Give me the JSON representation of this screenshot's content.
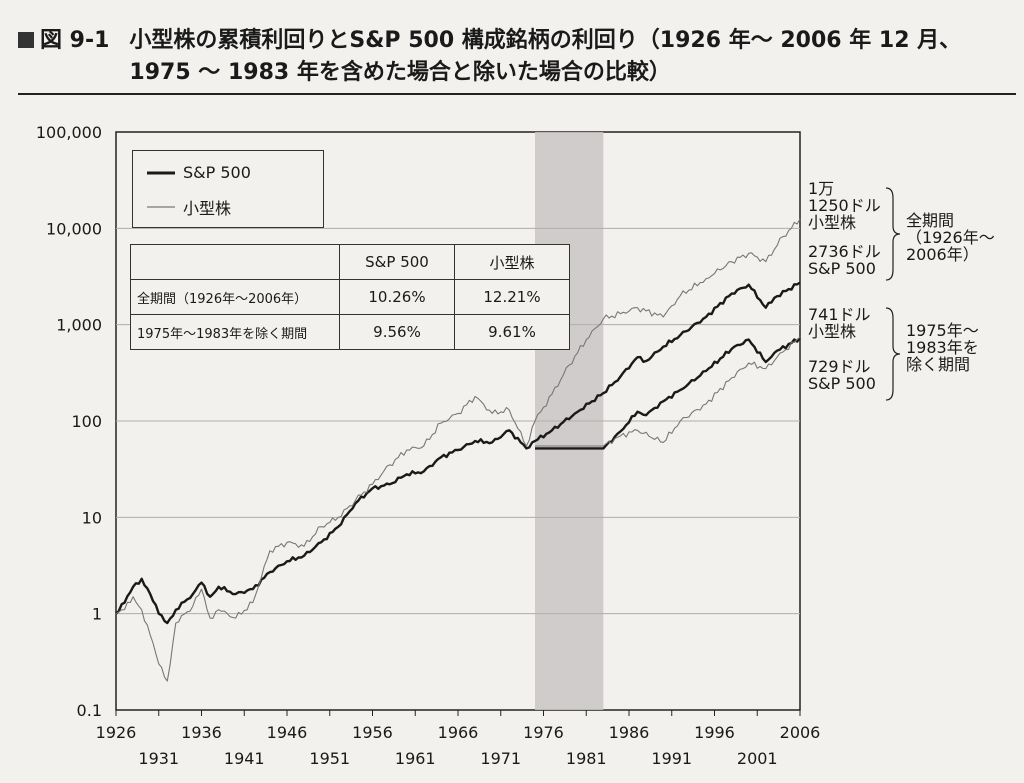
{
  "title": {
    "fig_label": "図 9-1",
    "text": "小型株の累積利回りとS&P 500 構成銘柄の利回り（1926 年～ 2006 年 12 月、1975 ～ 1983 年を含めた場合と除いた場合の比較）"
  },
  "legend": {
    "sp500": "S&P 500",
    "small": "小型株"
  },
  "table": {
    "headers": [
      "",
      "S&P 500",
      "小型株"
    ],
    "rows": [
      {
        "label": "全期間（1926年～2006年）",
        "sp500": "10.26%",
        "small": "12.21%"
      },
      {
        "label": "1975年～1983年を除く期間",
        "sp500": "9.56%",
        "small": "9.61%"
      }
    ]
  },
  "annotations": {
    "small_full": [
      "1万",
      "1250ドル",
      "小型株"
    ],
    "sp_full": [
      "2736ドル",
      "S&P 500"
    ],
    "full_label": [
      "全期間",
      "（1926年～",
      "2006年）"
    ],
    "small_excl": [
      "741ドル",
      "小型株"
    ],
    "sp_excl": [
      "729ドル",
      "S&P 500"
    ],
    "excl_label": [
      "1975年～",
      "1983年を",
      "除く期間"
    ]
  },
  "colors": {
    "sp500": "#1a1a1a",
    "small": "#777777",
    "shade": "#c9c6c4",
    "grid": "#b0aeab"
  },
  "chart_data": {
    "type": "line",
    "title": "小型株の累積利回りとS&P 500 構成銘柄の利回り",
    "xlabel": "",
    "ylabel": "",
    "yscale": "log",
    "ylim": [
      0.1,
      100000
    ],
    "xlim": [
      1926,
      2006
    ],
    "yticks": [
      0.1,
      1,
      10,
      100,
      1000,
      10000,
      100000
    ],
    "ytick_labels": [
      "0.1",
      "1",
      "10",
      "100",
      "1,000",
      "10,000",
      "100,000"
    ],
    "xticks_top": [
      "1926",
      "1936",
      "1946",
      "1956",
      "1966",
      "1976",
      "1986",
      "1996",
      "2006"
    ],
    "xticks_bottom": [
      "1931",
      "1941",
      "1951",
      "1961",
      "1971",
      "1981",
      "1991",
      "2001"
    ],
    "shaded_range": [
      1975,
      1983
    ],
    "series": [
      {
        "name": "S&P 500 (全期間)",
        "style": "bold",
        "x": [
          1926,
          1927,
          1928,
          1929,
          1930,
          1931,
          1932,
          1933,
          1935,
          1936,
          1937,
          1938,
          1940,
          1942,
          1944,
          1946,
          1948,
          1950,
          1952,
          1954,
          1956,
          1958,
          1960,
          1962,
          1964,
          1966,
          1968,
          1970,
          1972,
          1974,
          1975,
          1977,
          1980,
          1983,
          1985,
          1987,
          1988,
          1990,
          1992,
          1995,
          1998,
          2000,
          2002,
          2003,
          2006
        ],
        "values": [
          1.0,
          1.3,
          1.9,
          2.3,
          1.6,
          1.0,
          0.8,
          1.1,
          1.6,
          2.1,
          1.5,
          1.9,
          1.6,
          1.8,
          2.7,
          3.5,
          4.0,
          5.5,
          8.0,
          14,
          20,
          22,
          28,
          30,
          42,
          50,
          62,
          60,
          80,
          52,
          62,
          80,
          125,
          195,
          290,
          460,
          420,
          590,
          780,
          1200,
          2100,
          2600,
          1500,
          1900,
          2736
        ]
      },
      {
        "name": "小型株 (全期間)",
        "style": "thin",
        "x": [
          1926,
          1927,
          1928,
          1929,
          1930,
          1931,
          1932,
          1933,
          1935,
          1936,
          1937,
          1938,
          1940,
          1942,
          1944,
          1946,
          1948,
          1950,
          1952,
          1954,
          1956,
          1958,
          1960,
          1962,
          1964,
          1966,
          1968,
          1970,
          1972,
          1974,
          1975,
          1977,
          1979,
          1981,
          1983,
          1985,
          1987,
          1990,
          1992,
          1995,
          1998,
          2000,
          2002,
          2004,
          2006
        ],
        "values": [
          1.0,
          1.1,
          1.5,
          1.1,
          0.6,
          0.3,
          0.2,
          0.8,
          1.2,
          1.8,
          0.9,
          1.1,
          0.9,
          1.3,
          4.5,
          5.5,
          5.0,
          8.0,
          10,
          15,
          22,
          35,
          50,
          55,
          95,
          120,
          180,
          120,
          130,
          55,
          100,
          190,
          380,
          700,
          1150,
          1300,
          1500,
          1200,
          2000,
          3000,
          4500,
          5500,
          4500,
          8200,
          12500
        ]
      },
      {
        "name": "S&P 500 (1975～1983年を除く期間)",
        "style": "bold",
        "x": [
          1975,
          1983,
          1985,
          1987,
          1988,
          1990,
          1992,
          1995,
          1998,
          2000,
          2002,
          2003,
          2006
        ],
        "values": [
          52,
          52,
          78,
          125,
          115,
          160,
          210,
          330,
          560,
          700,
          410,
          510,
          729
        ]
      },
      {
        "name": "小型株 (1975～1983年を除く期間)",
        "style": "thin",
        "x": [
          1975,
          1983,
          1985,
          1987,
          1990,
          1992,
          1995,
          1998,
          2000,
          2002,
          2004,
          2006
        ],
        "values": [
          55,
          55,
          70,
          80,
          60,
          100,
          150,
          280,
          400,
          350,
          520,
          741
        ]
      }
    ]
  }
}
